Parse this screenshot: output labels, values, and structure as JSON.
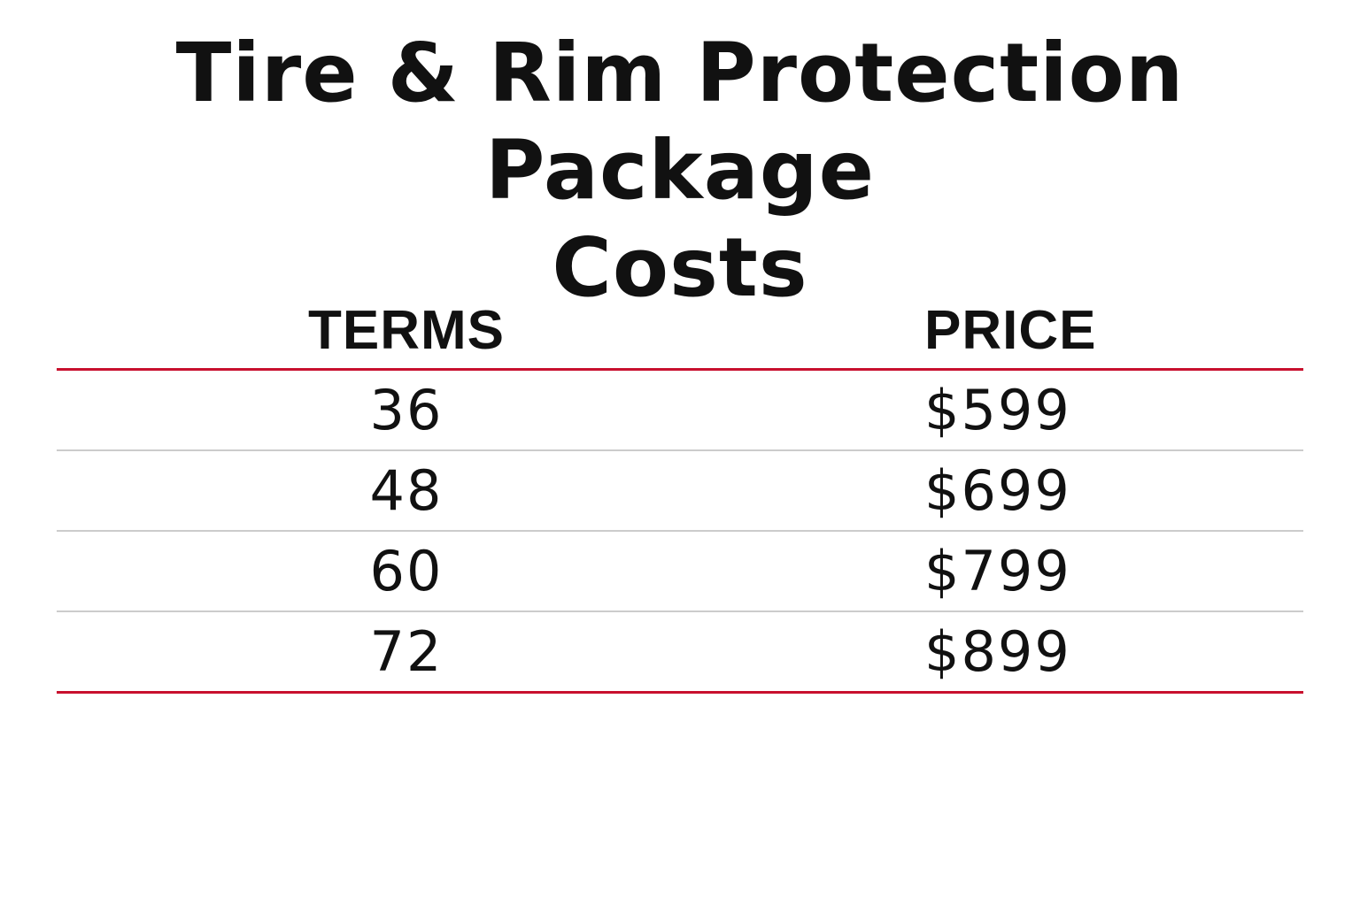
{
  "title_line1": "Tire & Rim Protection Package",
  "title_line2": "Costs",
  "table": {
    "headers": [
      "TERMS",
      "PRICE"
    ],
    "rows": [
      {
        "terms": "36",
        "price": "$599"
      },
      {
        "terms": "48",
        "price": "$699"
      },
      {
        "terms": "60",
        "price": "$799"
      },
      {
        "terms": "72",
        "price": "$899"
      }
    ]
  },
  "colors": {
    "text": "#111111",
    "accent_rule": "#c8102e",
    "row_divider": "#cccccc",
    "background": "#ffffff"
  }
}
